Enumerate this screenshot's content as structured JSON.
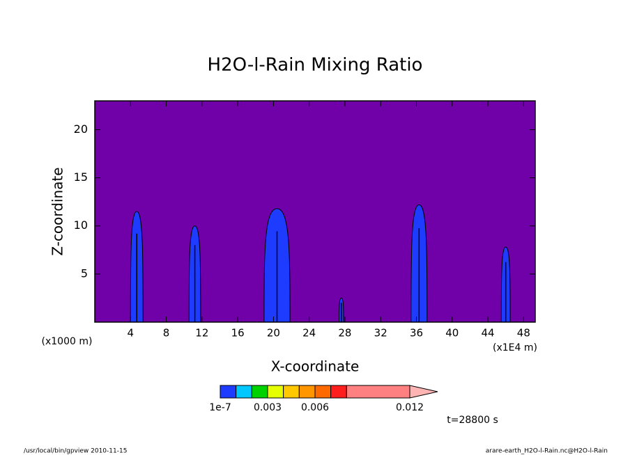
{
  "chart_data": {
    "type": "contour",
    "title": "H2O-l-Rain Mixing Ratio",
    "x_label": "X-coordinate",
    "y_label": "Z-coordinate",
    "x_unit_left": "(x1000 m)",
    "x_unit_right": "(x1E4 m)",
    "time_label": "t=28800 s",
    "footer_left": "/usr/local/bin/gpview  2010-11-15",
    "footer_right": "arare-earth_H2O-l-Rain.nc@H2O-l-Rain",
    "xlim": [
      0,
      49.3
    ],
    "xticks": [
      4,
      8,
      12,
      16,
      20,
      24,
      28,
      32,
      36,
      40,
      44,
      48
    ],
    "ylim": [
      0,
      23
    ],
    "yticks": [
      5,
      10,
      15,
      20
    ],
    "background_color": "#7000a8",
    "cloud_color": "#1e3cff",
    "clouds": [
      {
        "x": 4.7,
        "width": 1.4,
        "top": 11.5
      },
      {
        "x": 11.2,
        "width": 1.3,
        "top": 10
      },
      {
        "x": 20.4,
        "width": 2.9,
        "top": 11.8
      },
      {
        "x": 27.6,
        "width": 0.5,
        "top": 2.5
      },
      {
        "x": 36.3,
        "width": 1.8,
        "top": 12.2
      },
      {
        "x": 46,
        "width": 1.0,
        "top": 7.8
      }
    ],
    "colorbar": {
      "levels": [
        1e-07,
        0.001,
        0.002,
        0.003,
        0.004,
        0.005,
        0.006,
        0.007,
        0.008,
        0.012
      ],
      "colors": [
        "#1e3cff",
        "#00c8ff",
        "#00d200",
        "#e6ff00",
        "#ffc800",
        "#ff9600",
        "#ff6a00",
        "#ff1e1e",
        "#ff8080"
      ],
      "over_color": "#ffb4b4",
      "clim": [
        0,
        0.012
      ],
      "ticks": [
        1e-07,
        0.003,
        0.006,
        0.012
      ]
    }
  }
}
